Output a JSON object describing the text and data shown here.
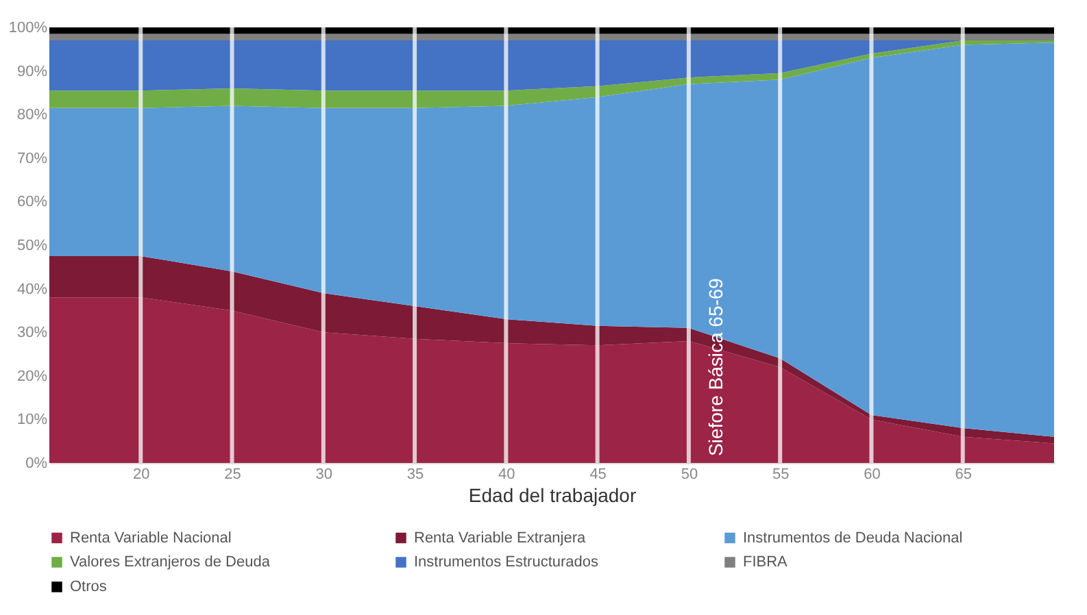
{
  "chart_data": {
    "type": "area",
    "stacked": true,
    "xlabel": "Edad del trabajador",
    "x": [
      15,
      20,
      25,
      30,
      35,
      40,
      45,
      50,
      55,
      60,
      65,
      70
    ],
    "xlim": [
      15,
      70
    ],
    "xticks": [
      20,
      25,
      30,
      35,
      40,
      45,
      50,
      55,
      60,
      65
    ],
    "ylim": [
      0,
      100
    ],
    "yticks": [
      {
        "value": 0,
        "label": "0%"
      },
      {
        "value": 10,
        "label": "10%"
      },
      {
        "value": 20,
        "label": "20%"
      },
      {
        "value": 30,
        "label": "30%"
      },
      {
        "value": 40,
        "label": "40%"
      },
      {
        "value": 50,
        "label": "50%"
      },
      {
        "value": 60,
        "label": "60%"
      },
      {
        "value": 70,
        "label": "70%"
      },
      {
        "value": 80,
        "label": "80%"
      },
      {
        "value": 90,
        "label": "90%"
      },
      {
        "value": 100,
        "label": "100%"
      }
    ],
    "grid": "x",
    "legend": "bottom",
    "series": [
      {
        "name": "Renta Variable Nacional",
        "color": "#9c2447",
        "values": [
          38,
          38,
          35,
          30,
          28.5,
          27.5,
          27,
          28,
          22,
          10,
          6,
          4.5
        ]
      },
      {
        "name": "Renta Variable Extranjera",
        "color": "#7d1a35",
        "values": [
          9.5,
          9.5,
          9,
          9,
          7.5,
          5.5,
          4.5,
          3,
          2,
          1,
          2,
          1.5
        ]
      },
      {
        "name": "Instrumentos de Deuda Nacional",
        "color": "#5b9bd5",
        "values": [
          34,
          34,
          38,
          42.5,
          45.5,
          49,
          52.5,
          56,
          64,
          82,
          88,
          90.5
        ]
      },
      {
        "name": "Valores Extranjeros de Deuda",
        "color": "#70ad47",
        "values": [
          4,
          4,
          4,
          4,
          4,
          3.5,
          2.5,
          1.5,
          1.5,
          1,
          1,
          0.5
        ]
      },
      {
        "name": "Instrumentos Estructurados",
        "color": "#4472c4",
        "values": [
          11.5,
          11.5,
          11,
          11.5,
          11.5,
          11.5,
          10.5,
          8.5,
          7.5,
          3,
          0,
          0
        ]
      },
      {
        "name": "FIBRA",
        "color": "#808080",
        "values": [
          1.5,
          1.5,
          1.5,
          1.5,
          1.5,
          1.5,
          1.5,
          1.5,
          1.5,
          1.5,
          1.5,
          1.5
        ]
      },
      {
        "name": "Otros",
        "color": "#000000",
        "values": [
          1.5,
          1.5,
          1.5,
          1.5,
          1.5,
          1.5,
          1.5,
          1.5,
          1.5,
          1.5,
          1.5,
          1.5
        ]
      }
    ],
    "annotations": [
      "Siefore Básica 65-69"
    ]
  }
}
